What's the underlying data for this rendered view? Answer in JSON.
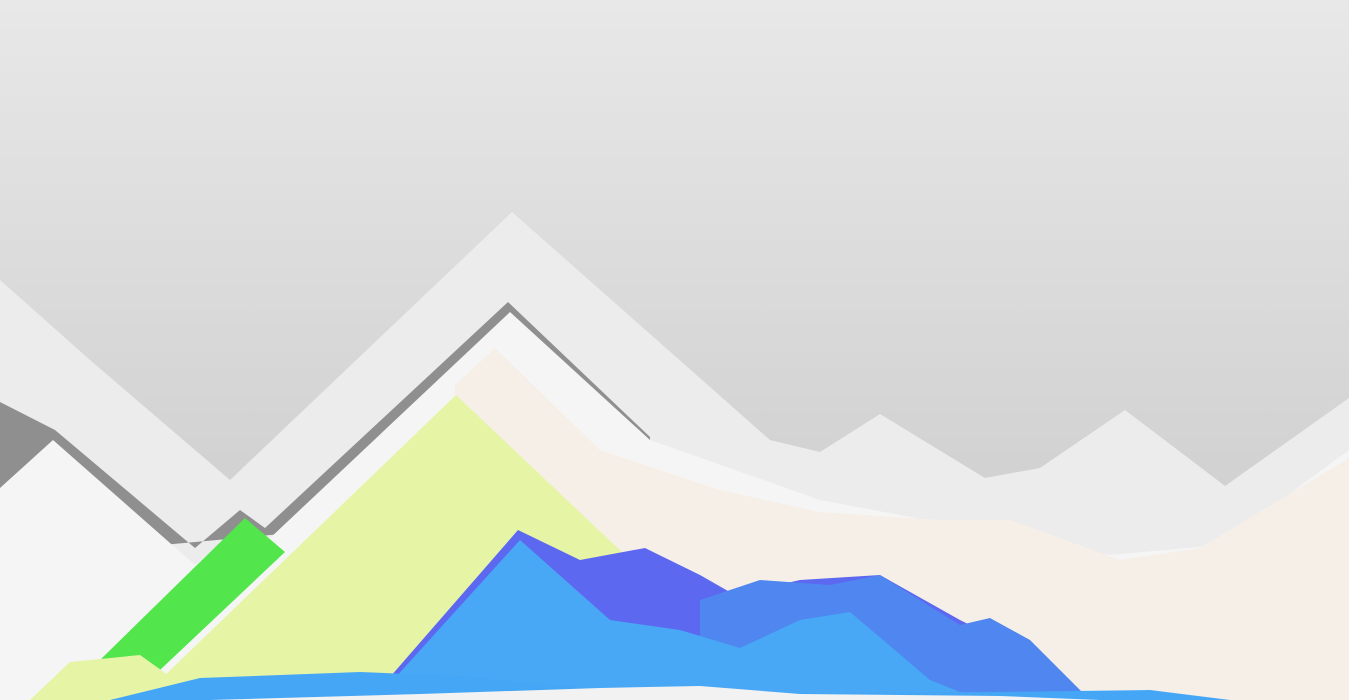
{
  "scene": {
    "description_visible_text": "",
    "sky": {
      "top_color": "#e8e8e8",
      "bottom_color": "#c7c7c7"
    },
    "layers": [
      {
        "name": "far-gray-ridge",
        "color": "#ececec"
      },
      {
        "name": "dark-gray-ridge",
        "color": "#8f8f8f"
      },
      {
        "name": "white-ridge",
        "color": "#f5f5f5"
      },
      {
        "name": "green-peak",
        "color": "#52e64c"
      },
      {
        "name": "cream-hills",
        "color": "#f6efe8"
      },
      {
        "name": "light-yellow-peak",
        "color": "#e6f4a6"
      },
      {
        "name": "indigo-peak",
        "color": "#5d68f0"
      },
      {
        "name": "blue-ridge",
        "color": "#4f86ef"
      },
      {
        "name": "sky-blue-peak",
        "color": "#48a8f5"
      },
      {
        "name": "foreground-blue-band",
        "color": "#45a6f5"
      },
      {
        "name": "foreground-snow-strip",
        "color": "#f2f2f2"
      }
    ]
  }
}
